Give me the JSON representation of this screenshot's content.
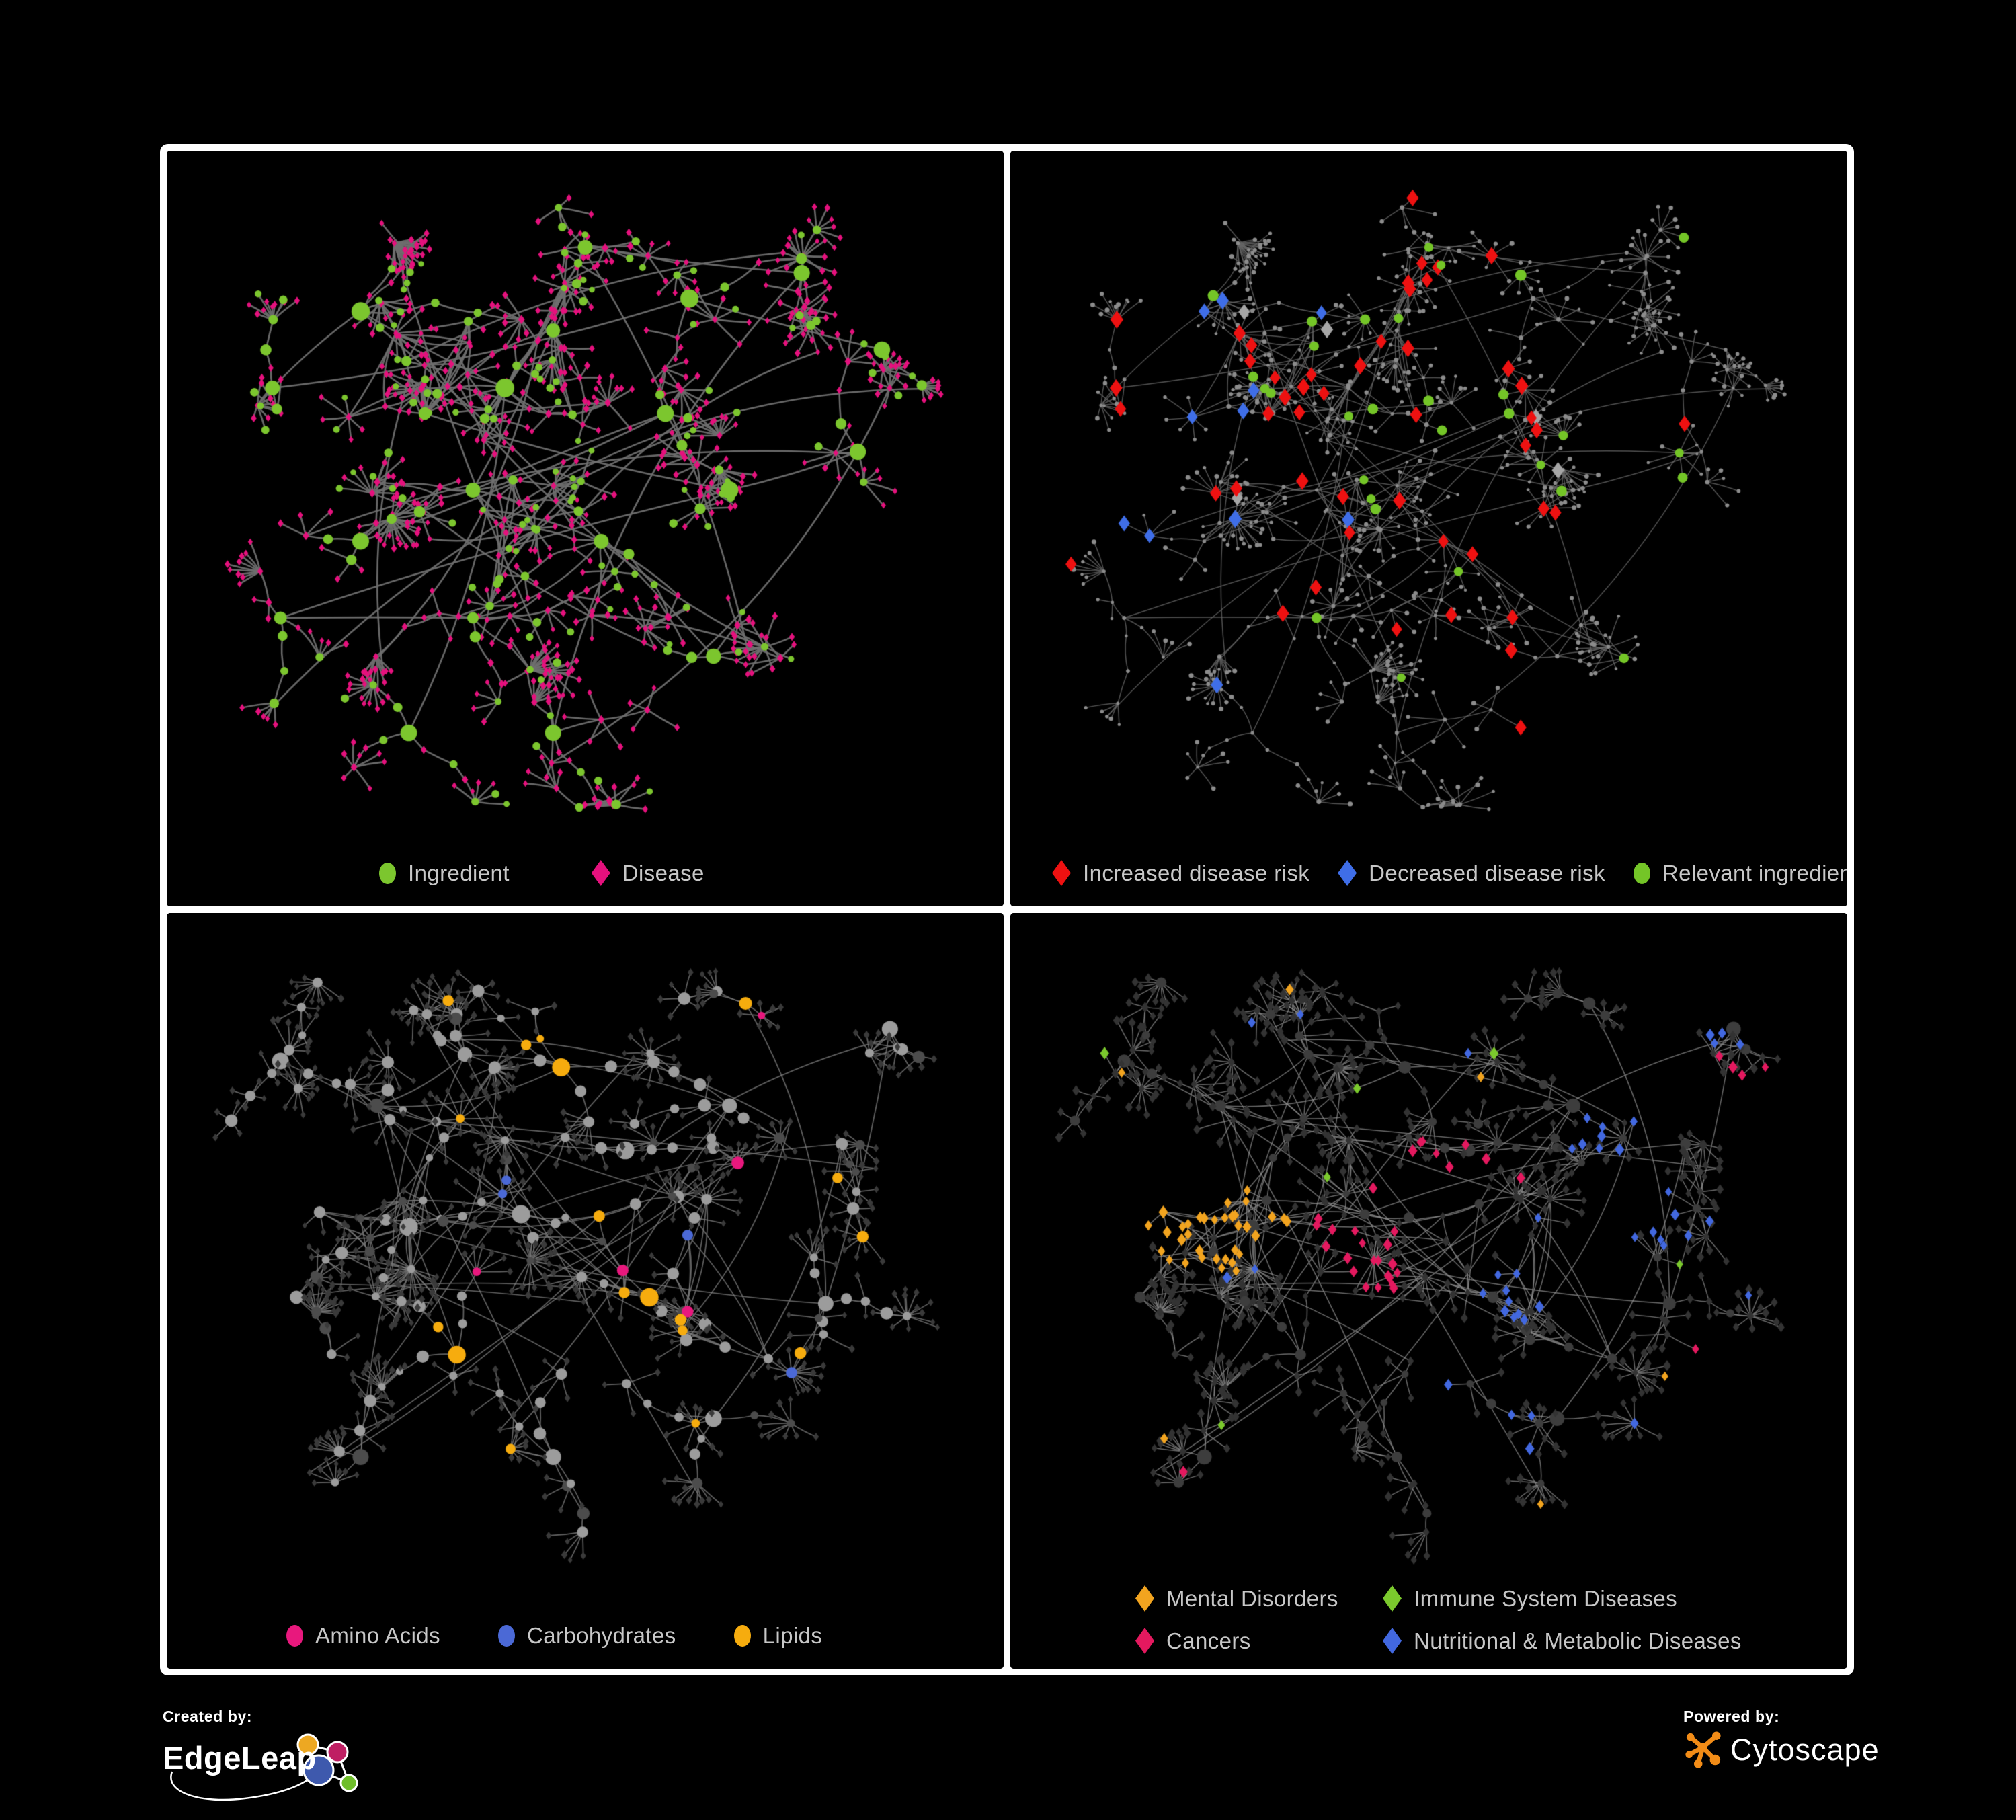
{
  "figure": {
    "background": "#000000",
    "panel_border_color": "#ffffff",
    "legend_text_color": "#c7c7c7"
  },
  "panels": [
    {
      "name": "ingredient-disease-network",
      "legend": [
        {
          "label": "Ingredient",
          "shape": "ellipse",
          "color": "#7cc62e"
        },
        {
          "label": "Disease",
          "shape": "diamond",
          "color": "#e5117d"
        }
      ],
      "style": {
        "type": "bipartite",
        "edge_color": "#6f6f6f",
        "node_colors": {
          "ingredient": "#7cc62e",
          "disease": "#e5117d"
        }
      }
    },
    {
      "name": "disease-risk-network",
      "legend": [
        {
          "label": "Increased disease risk",
          "shape": "diamond",
          "color": "#ee1111"
        },
        {
          "label": "Decreased disease risk",
          "shape": "diamond",
          "color": "#3f6ee8"
        },
        {
          "label": "Relevant ingredient",
          "shape": "ellipse",
          "color": "#74c527"
        }
      ],
      "style": {
        "type": "risk",
        "edge_color": "#676767",
        "node_colors": {
          "base": "#8c8c8c",
          "increased": "#ee1111",
          "decreased": "#3f6ee8",
          "neutral": "#a6a6a6",
          "ingredient": "#74c527"
        }
      }
    },
    {
      "name": "nutrient-class-network",
      "legend": [
        {
          "label": "Amino Acids",
          "shape": "ellipse",
          "color": "#e8187d"
        },
        {
          "label": "Carbohydrates",
          "shape": "ellipse",
          "color": "#4b69d6"
        },
        {
          "label": "Lipids",
          "shape": "ellipse",
          "color": "#f6ac0e"
        }
      ],
      "style": {
        "type": "nutrient",
        "edge_color": "#7b7b7b",
        "node_colors": {
          "default": "#9c9c9c",
          "dark": "#4c4c4c",
          "disease": "#3a3a3a",
          "amino": "#e8187d",
          "carb": "#4b69d6",
          "lipid": "#f6ac0e"
        }
      }
    },
    {
      "name": "disease-category-network",
      "legend": [
        {
          "label": "Mental Disorders",
          "shape": "diamond",
          "color": "#f2a41f"
        },
        {
          "label": "Immune System Diseases",
          "shape": "diamond",
          "color": "#7bc92d"
        },
        {
          "label": "Cancers",
          "shape": "diamond",
          "color": "#e4195f"
        },
        {
          "label": "Nutritional & Metabolic Diseases",
          "shape": "diamond",
          "color": "#4268e0"
        }
      ],
      "style": {
        "type": "category",
        "edge_color": "#8d8d8d",
        "node_colors": {
          "ingredient": "#3d3d3d",
          "disease": "#333333",
          "mental": "#f2a41f",
          "immune": "#7bc92d",
          "cancer": "#e4195f",
          "metabolic": "#4268e0"
        }
      }
    }
  ],
  "footer": {
    "created_by": {
      "label": "Created by:",
      "brand": "EdgeLeap"
    },
    "powered_by": {
      "label": "Powered by:",
      "brand": "Cytoscape"
    },
    "edgeleap_logo_colors": {
      "orange": "#eda822",
      "magenta": "#bf1f63",
      "blue": "#3e59ad",
      "green": "#6fbe2a"
    },
    "cytoscape_logo_color": "#f28c17"
  }
}
